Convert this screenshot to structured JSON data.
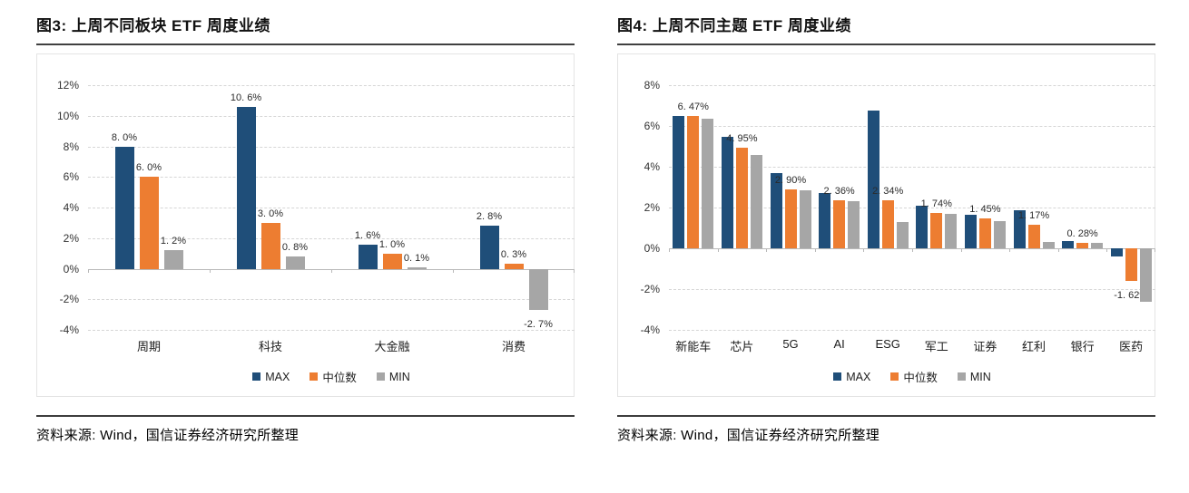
{
  "colors": {
    "series": [
      "#1f4e79",
      "#ed7d31",
      "#a6a6a6"
    ],
    "grid": "#d6d6d6",
    "axis": "#b9b9b9"
  },
  "panels": [
    {
      "title": "图3: 上周不同板块 ETF 周度业绩",
      "source": "资料来源: Wind，国信证券经济研究所整理"
    },
    {
      "title": "图4: 上周不同主题 ETF 周度业绩",
      "source": "资料来源: Wind，国信证券经济研究所整理"
    }
  ],
  "chart_data": [
    {
      "type": "bar",
      "title": "图3: 上周不同板块 ETF 周度业绩",
      "categories": [
        "周期",
        "科技",
        "大金融",
        "消费"
      ],
      "series": [
        {
          "name": "MAX",
          "values": [
            8.0,
            10.6,
            1.6,
            2.8
          ],
          "labels": [
            "8. 0%",
            "10. 6%",
            "1. 6%",
            "2. 8%"
          ]
        },
        {
          "name": "中位数",
          "values": [
            6.0,
            3.0,
            1.0,
            0.3
          ],
          "labels": [
            "6. 0%",
            "3. 0%",
            "1. 0%",
            "0. 3%"
          ]
        },
        {
          "name": "MIN",
          "values": [
            1.2,
            0.8,
            0.1,
            -2.7
          ],
          "labels": [
            "1. 2%",
            "0. 8%",
            "0. 1%",
            "-2. 7%"
          ]
        }
      ],
      "ylim": [
        -4,
        12
      ],
      "ytick_step": 2,
      "ytick_labels": [
        "12%",
        "10%",
        "8%",
        "6%",
        "4%",
        "2%",
        "0%",
        "-2%",
        "-4%"
      ],
      "grid": true,
      "legend": [
        "MAX",
        "中位数",
        "MIN"
      ],
      "legend_position": "bottom"
    },
    {
      "type": "bar",
      "title": "图4: 上周不同主题 ETF 周度业绩",
      "categories": [
        "新能车",
        "芯片",
        "5G",
        "AI",
        "ESG",
        "军工",
        "证券",
        "红利",
        "银行",
        "医药"
      ],
      "series": [
        {
          "name": "MAX",
          "values": [
            6.5,
            5.45,
            3.7,
            2.7,
            6.75,
            2.1,
            1.65,
            1.85,
            0.35,
            -0.4
          ],
          "labels": null
        },
        {
          "name": "中位数",
          "values": [
            6.47,
            4.95,
            2.9,
            2.36,
            2.34,
            1.74,
            1.45,
            1.17,
            0.28,
            -1.62
          ],
          "labels": [
            "6. 47%",
            "4. 95%",
            "2. 90%",
            "2. 36%",
            "2. 34%",
            "1. 74%",
            "1. 45%",
            "1. 17%",
            "0. 28%",
            "-1. 62%"
          ]
        },
        {
          "name": "MIN",
          "values": [
            6.35,
            4.6,
            2.85,
            2.3,
            1.3,
            1.7,
            1.35,
            0.3,
            0.25,
            -2.6
          ],
          "labels": null
        }
      ],
      "ylim": [
        -4,
        8
      ],
      "ytick_step": 2,
      "ytick_labels": [
        "8%",
        "6%",
        "4%",
        "2%",
        "0%",
        "-2%",
        "-4%"
      ],
      "grid": true,
      "legend": [
        "MAX",
        "中位数",
        "MIN"
      ],
      "legend_position": "bottom"
    }
  ]
}
